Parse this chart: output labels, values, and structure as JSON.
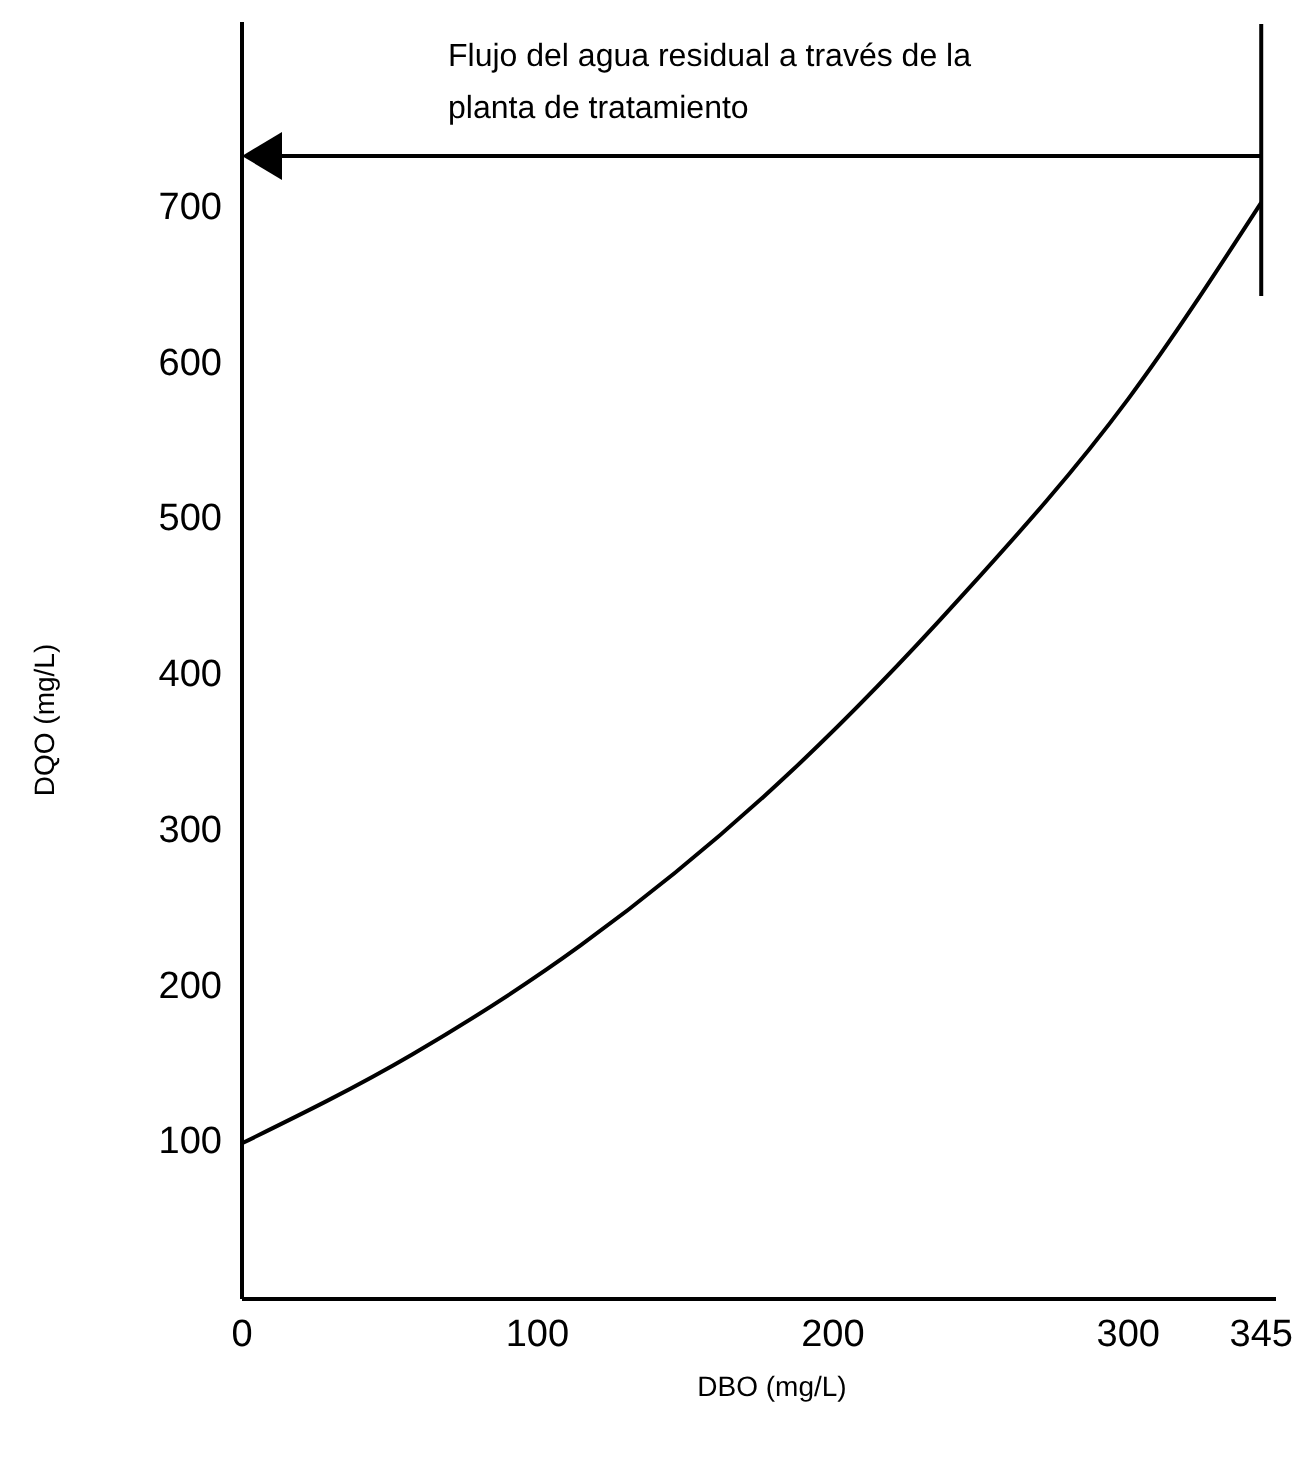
{
  "chart_data": {
    "type": "line",
    "xlabel": "DBO (mg/L)",
    "ylabel": "DQO (mg/L)",
    "x": [
      0,
      57.6,
      114.6,
      186,
      243,
      300,
      345
    ],
    "series": [
      {
        "color": "#000000",
        "values": [
          100,
          157,
          227,
          339,
          450,
          578,
          704
        ]
      }
    ],
    "ref_lines": [
      {
        "axis": "y",
        "value": 734,
        "label": "Flujo del agua residual a través de la planta de tratamiento",
        "color": "#000000"
      },
      {
        "axis": "x",
        "value": 345,
        "color": "#000000"
      }
    ],
    "xlim": [
      0,
      350
    ],
    "ylim": [
      0,
      820
    ],
    "xticks": [
      0,
      100,
      200,
      300,
      345
    ],
    "yticks": [
      100,
      200,
      300,
      400,
      500,
      600,
      700
    ],
    "grid": false,
    "marker": "none",
    "line_style": "solid"
  }
}
